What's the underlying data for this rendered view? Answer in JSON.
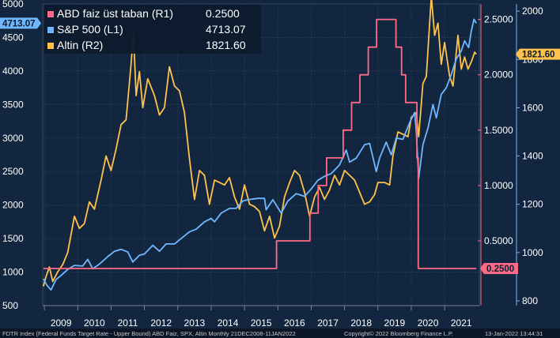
{
  "chart_data": {
    "type": "line",
    "x_range": [
      2008.95,
      2022.04
    ],
    "x_ticks": [
      "2009",
      "2010",
      "2011",
      "2012",
      "2013",
      "2014",
      "2015",
      "2016",
      "2017",
      "2018",
      "2019",
      "2020",
      "2021"
    ],
    "axes": {
      "left": {
        "ticks": [
          500,
          1000,
          1500,
          2000,
          2500,
          3000,
          3500,
          4000,
          4500,
          5000
        ],
        "range": [
          500,
          5000
        ]
      },
      "r1": {
        "ticks": [
          "0.5000",
          "1.0000",
          "1.5000",
          "2.0000",
          "2.5000"
        ],
        "range": [
          -0.085,
          2.64
        ]
      },
      "r2": {
        "ticks": [
          800,
          1000,
          1200,
          1400,
          1600,
          1800,
          2000
        ],
        "range": [
          780,
          2030
        ]
      }
    },
    "legend": [
      {
        "label": "ABD faiz üst taban (R1)",
        "value": "0.2500",
        "color": "#ff6b87"
      },
      {
        "label": "S&P 500 (L1)",
        "value": "4713.07",
        "color": "#6fb8ff"
      },
      {
        "label": "Altin (R2)",
        "value": "1821.60",
        "color": "#ffc34d"
      }
    ],
    "badges": {
      "sp": {
        "text": "4713.07",
        "value": 4713.07
      },
      "gold": {
        "text": "1821.60",
        "value": 1821.6
      },
      "fed": {
        "text": "0.2500",
        "value": 0.25
      }
    },
    "series": [
      {
        "name": "ABD faiz üst taban (R1)",
        "axis": "r1",
        "color": "#ff6b87",
        "step": true,
        "points": [
          [
            2008.97,
            0.25
          ],
          [
            2015.96,
            0.25
          ],
          [
            2015.96,
            0.5
          ],
          [
            2016.96,
            0.5
          ],
          [
            2016.96,
            0.75
          ],
          [
            2017.21,
            0.75
          ],
          [
            2017.21,
            1.0
          ],
          [
            2017.46,
            1.0
          ],
          [
            2017.46,
            1.25
          ],
          [
            2017.96,
            1.25
          ],
          [
            2017.96,
            1.5
          ],
          [
            2018.21,
            1.5
          ],
          [
            2018.21,
            1.75
          ],
          [
            2018.46,
            1.75
          ],
          [
            2018.46,
            2.0
          ],
          [
            2018.71,
            2.0
          ],
          [
            2018.71,
            2.25
          ],
          [
            2018.96,
            2.25
          ],
          [
            2018.96,
            2.5
          ],
          [
            2019.54,
            2.5
          ],
          [
            2019.54,
            2.25
          ],
          [
            2019.71,
            2.25
          ],
          [
            2019.71,
            2.0
          ],
          [
            2019.83,
            2.0
          ],
          [
            2019.83,
            1.75
          ],
          [
            2020.17,
            1.75
          ],
          [
            2020.17,
            1.25
          ],
          [
            2020.21,
            1.25
          ],
          [
            2020.21,
            0.25
          ],
          [
            2021.95,
            0.25
          ]
        ]
      },
      {
        "name": "S&P 500 (L1)",
        "axis": "left",
        "color": "#6fb8ff",
        "points": [
          [
            2008.97,
            900
          ],
          [
            2009.08,
            800
          ],
          [
            2009.2,
            735
          ],
          [
            2009.35,
            890
          ],
          [
            2009.5,
            950
          ],
          [
            2009.7,
            1040
          ],
          [
            2009.9,
            1100
          ],
          [
            2010.15,
            1090
          ],
          [
            2010.3,
            1190
          ],
          [
            2010.45,
            1050
          ],
          [
            2010.65,
            1120
          ],
          [
            2010.9,
            1230
          ],
          [
            2011.1,
            1310
          ],
          [
            2011.3,
            1340
          ],
          [
            2011.5,
            1300
          ],
          [
            2011.65,
            1150
          ],
          [
            2011.85,
            1250
          ],
          [
            2012.0,
            1270
          ],
          [
            2012.25,
            1400
          ],
          [
            2012.45,
            1310
          ],
          [
            2012.65,
            1420
          ],
          [
            2012.9,
            1420
          ],
          [
            2013.1,
            1500
          ],
          [
            2013.35,
            1600
          ],
          [
            2013.55,
            1640
          ],
          [
            2013.8,
            1750
          ],
          [
            2014.0,
            1800
          ],
          [
            2014.1,
            1750
          ],
          [
            2014.3,
            1880
          ],
          [
            2014.55,
            1950
          ],
          [
            2014.75,
            1950
          ],
          [
            2014.95,
            2060
          ],
          [
            2015.1,
            2080
          ],
          [
            2015.4,
            2100
          ],
          [
            2015.6,
            2100
          ],
          [
            2015.65,
            1930
          ],
          [
            2015.85,
            2080
          ],
          [
            2016.1,
            1880
          ],
          [
            2016.3,
            2060
          ],
          [
            2016.55,
            2170
          ],
          [
            2016.8,
            2130
          ],
          [
            2017.0,
            2240
          ],
          [
            2017.2,
            2370
          ],
          [
            2017.4,
            2430
          ],
          [
            2017.6,
            2470
          ],
          [
            2017.85,
            2600
          ],
          [
            2018.05,
            2820
          ],
          [
            2018.15,
            2640
          ],
          [
            2018.35,
            2700
          ],
          [
            2018.6,
            2900
          ],
          [
            2018.75,
            2920
          ],
          [
            2018.95,
            2500
          ],
          [
            2019.05,
            2700
          ],
          [
            2019.25,
            2940
          ],
          [
            2019.4,
            2750
          ],
          [
            2019.55,
            3000
          ],
          [
            2019.75,
            2980
          ],
          [
            2019.95,
            3230
          ],
          [
            2020.1,
            3380
          ],
          [
            2020.15,
            3100
          ],
          [
            2020.22,
            2400
          ],
          [
            2020.35,
            2900
          ],
          [
            2020.5,
            3150
          ],
          [
            2020.65,
            3500
          ],
          [
            2020.75,
            3300
          ],
          [
            2020.9,
            3650
          ],
          [
            2021.05,
            3750
          ],
          [
            2021.2,
            3950
          ],
          [
            2021.35,
            4180
          ],
          [
            2021.5,
            4300
          ],
          [
            2021.6,
            4450
          ],
          [
            2021.72,
            4350
          ],
          [
            2021.8,
            4600
          ],
          [
            2021.88,
            4770
          ],
          [
            2021.95,
            4713
          ]
        ]
      },
      {
        "name": "Altin (R2)",
        "axis": "r2",
        "color": "#ffc34d",
        "points": [
          [
            2008.97,
            860
          ],
          [
            2009.05,
            900
          ],
          [
            2009.15,
            940
          ],
          [
            2009.25,
            880
          ],
          [
            2009.4,
            920
          ],
          [
            2009.55,
            950
          ],
          [
            2009.7,
            1000
          ],
          [
            2009.9,
            1150
          ],
          [
            2010.05,
            1100
          ],
          [
            2010.2,
            1120
          ],
          [
            2010.35,
            1210
          ],
          [
            2010.5,
            1180
          ],
          [
            2010.7,
            1300
          ],
          [
            2010.85,
            1400
          ],
          [
            2011.0,
            1340
          ],
          [
            2011.15,
            1430
          ],
          [
            2011.3,
            1530
          ],
          [
            2011.45,
            1550
          ],
          [
            2011.6,
            1780
          ],
          [
            2011.67,
            1910
          ],
          [
            2011.75,
            1650
          ],
          [
            2011.85,
            1750
          ],
          [
            2011.95,
            1600
          ],
          [
            2012.1,
            1720
          ],
          [
            2012.3,
            1650
          ],
          [
            2012.45,
            1570
          ],
          [
            2012.6,
            1600
          ],
          [
            2012.75,
            1770
          ],
          [
            2012.9,
            1690
          ],
          [
            2013.05,
            1670
          ],
          [
            2013.2,
            1580
          ],
          [
            2013.35,
            1390
          ],
          [
            2013.5,
            1220
          ],
          [
            2013.65,
            1340
          ],
          [
            2013.8,
            1320
          ],
          [
            2013.95,
            1200
          ],
          [
            2014.1,
            1300
          ],
          [
            2014.25,
            1290
          ],
          [
            2014.4,
            1280
          ],
          [
            2014.55,
            1310
          ],
          [
            2014.7,
            1230
          ],
          [
            2014.85,
            1180
          ],
          [
            2015.0,
            1280
          ],
          [
            2015.15,
            1200
          ],
          [
            2015.3,
            1190
          ],
          [
            2015.45,
            1170
          ],
          [
            2015.6,
            1090
          ],
          [
            2015.75,
            1150
          ],
          [
            2015.9,
            1060
          ],
          [
            2016.05,
            1110
          ],
          [
            2016.2,
            1230
          ],
          [
            2016.35,
            1290
          ],
          [
            2016.5,
            1340
          ],
          [
            2016.65,
            1320
          ],
          [
            2016.8,
            1250
          ],
          [
            2016.95,
            1150
          ],
          [
            2017.1,
            1230
          ],
          [
            2017.25,
            1270
          ],
          [
            2017.4,
            1220
          ],
          [
            2017.55,
            1260
          ],
          [
            2017.7,
            1320
          ],
          [
            2017.85,
            1280
          ],
          [
            2018.0,
            1340
          ],
          [
            2018.15,
            1320
          ],
          [
            2018.3,
            1300
          ],
          [
            2018.45,
            1250
          ],
          [
            2018.6,
            1200
          ],
          [
            2018.75,
            1210
          ],
          [
            2018.9,
            1240
          ],
          [
            2019.0,
            1290
          ],
          [
            2019.2,
            1290
          ],
          [
            2019.35,
            1280
          ],
          [
            2019.45,
            1400
          ],
          [
            2019.6,
            1500
          ],
          [
            2019.75,
            1490
          ],
          [
            2019.9,
            1480
          ],
          [
            2020.0,
            1560
          ],
          [
            2020.15,
            1580
          ],
          [
            2020.22,
            1480
          ],
          [
            2020.35,
            1700
          ],
          [
            2020.45,
            1730
          ],
          [
            2020.6,
            2060
          ],
          [
            2020.7,
            1900
          ],
          [
            2020.8,
            1950
          ],
          [
            2020.9,
            1780
          ],
          [
            2021.0,
            1870
          ],
          [
            2021.15,
            1730
          ],
          [
            2021.25,
            1690
          ],
          [
            2021.4,
            1900
          ],
          [
            2021.5,
            1760
          ],
          [
            2021.6,
            1810
          ],
          [
            2021.7,
            1760
          ],
          [
            2021.8,
            1790
          ],
          [
            2021.9,
            1830
          ],
          [
            2021.95,
            1821.6
          ]
        ]
      }
    ]
  },
  "footer": {
    "left": "FDTR Index (Federal Funds Target Rate - Upper Bound) ABD Faiz, SPX, Altin  Monthly 21DEC2008-11JAN2022",
    "center": "Copyright© 2022 Bloomberg Finance L.P.",
    "right": "13-Jan-2022 13:44:31"
  }
}
